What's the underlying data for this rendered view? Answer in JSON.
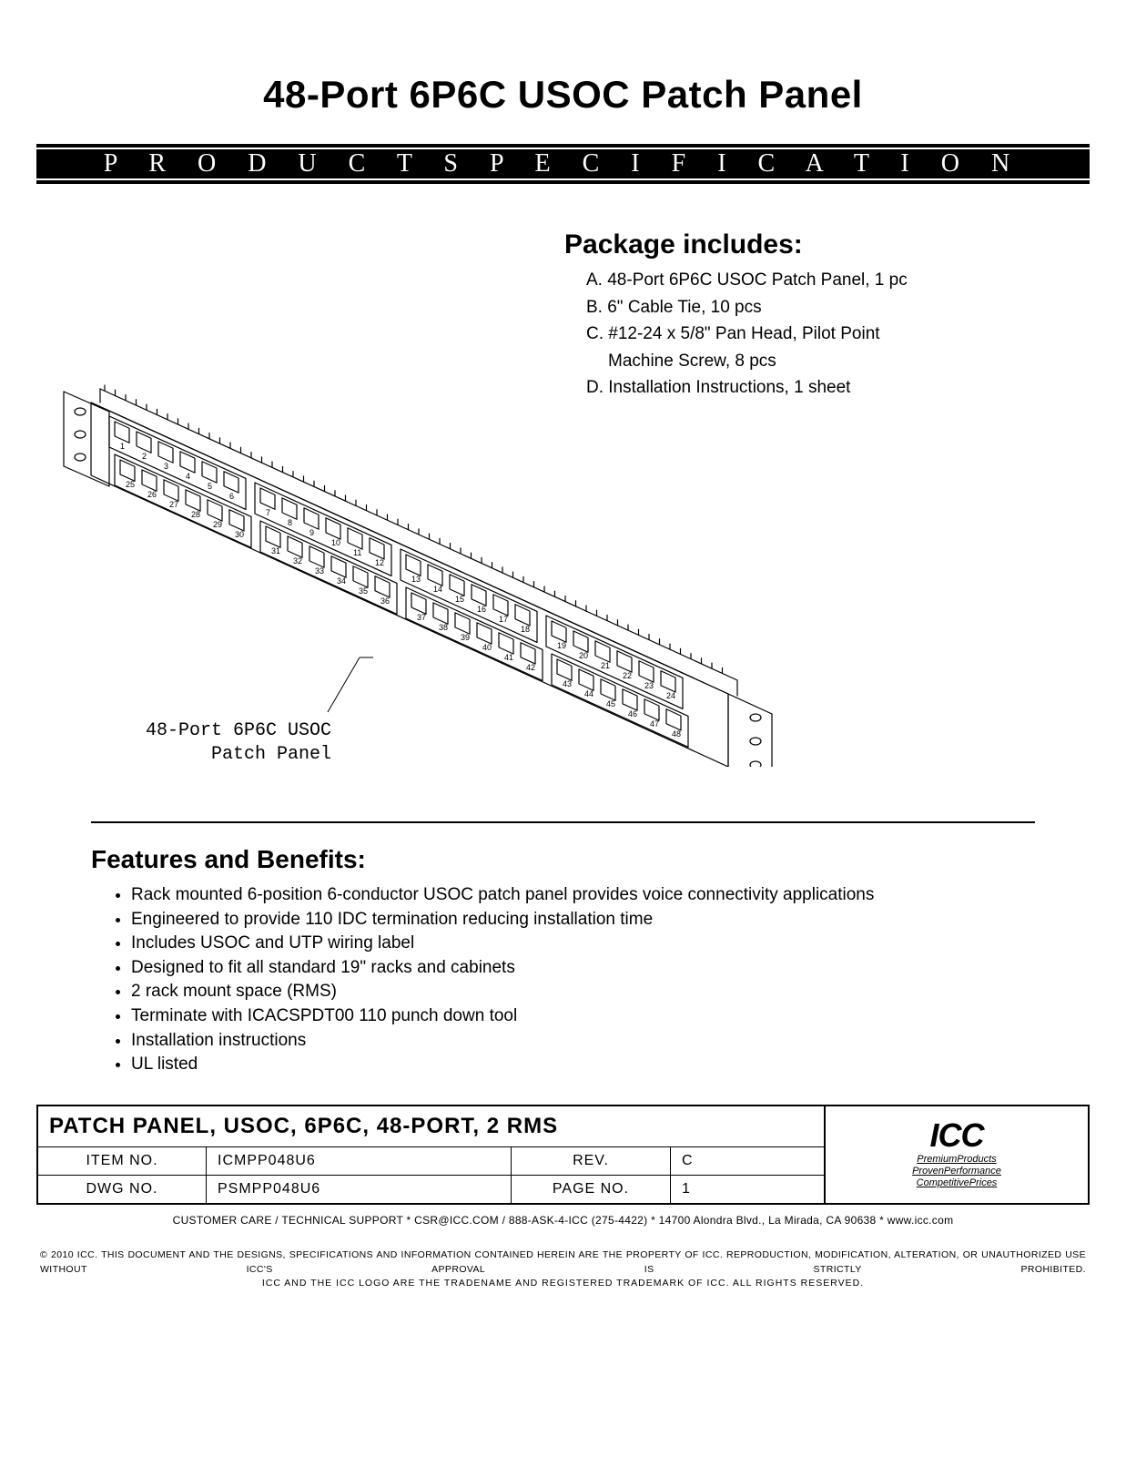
{
  "title": "48-Port 6P6C USOC Patch Panel",
  "spec_bar": "P R O D U C T   S P E C I F I C A T I O N",
  "package": {
    "heading": "Package includes:",
    "items": [
      "A. 48-Port 6P6C USOC Patch Panel, 1 pc",
      "B. 6\" Cable Tie, 10 pcs",
      "C. #12-24 x 5/8\" Pan Head, Pilot Point",
      "Machine Screw, 8 pcs",
      "D. Installation Instructions, 1 sheet"
    ]
  },
  "callout": {
    "line1": "48-Port 6P6C USOC",
    "line2": "Patch Panel"
  },
  "features": {
    "heading": "Features and Benefits:",
    "items": [
      "Rack mounted 6-position 6-conductor USOC patch panel provides voice connectivity applications",
      "Engineered to provide 110 IDC termination reducing installation time",
      "Includes USOC and UTP wiring label",
      "Designed to fit all standard 19\" racks and cabinets",
      "2 rack mount space (RMS)",
      "Terminate with ICACSPDT00 110 punch down tool",
      "Installation instructions",
      "UL listed"
    ]
  },
  "titleblock": {
    "heading": "PATCH PANEL, USOC, 6P6C, 48-PORT, 2 RMS",
    "rows": [
      {
        "c1": "ITEM  NO.",
        "c2": "ICMPP048U6",
        "c3": "REV.",
        "c4": "C"
      },
      {
        "c1": "DWG  NO.",
        "c2": "PSMPP048U6",
        "c3": "PAGE  NO.",
        "c4": "1"
      }
    ],
    "logo": "ICC",
    "tag_premium": "PremiumProducts",
    "tag_proven": "ProvenPerformance",
    "tag_prices": "CompetitivePrices"
  },
  "footer_support": "CUSTOMER CARE / TECHNICAL SUPPORT * CSR@ICC.COM / 888-ASK-4-ICC (275-4422) * 14700 Alondra Blvd., La Mirada, CA  90638 * www.icc.com",
  "footer_legal_1": "© 2010 ICC. THIS DOCUMENT AND THE DESIGNS, SPECIFICATIONS AND INFORMATION CONTAINED HEREIN ARE THE PROPERTY OF ICC. REPRODUCTION, MODIFICATION, ALTERATION, OR UNAUTHORIZED USE WITHOUT ICC'S APPROVAL IS STRICTLY PROHIBITED.",
  "footer_legal_2": "ICC AND THE ICC LOGO ARE THE TRADENAME AND REGISTERED TRADEMARK OF ICC.   ALL RIGHTS RESERVED.",
  "schematic": {
    "type": "isometric-line-drawing",
    "description": "48-port 6P6C USOC patch panel, 2 RMS, isometric view",
    "stroke_color": "#000000",
    "stroke_width": 1,
    "background": "#ffffff",
    "rows": 2,
    "groups_per_row": 4,
    "ports_per_group": 6,
    "port_labels": [
      1,
      2,
      3,
      4,
      5,
      6,
      7,
      8,
      9,
      10,
      11,
      12,
      13,
      14,
      15,
      16,
      17,
      18,
      19,
      20,
      21,
      22,
      23,
      24,
      25,
      26,
      27,
      28,
      29,
      30,
      31,
      32,
      33,
      34,
      35,
      36,
      37,
      38,
      39,
      40,
      41,
      42,
      43,
      44,
      45,
      46,
      47,
      48
    ],
    "mount_holes_per_ear": 3,
    "iso_tilt_deg": 28
  },
  "colors": {
    "text": "#000000",
    "background": "#ffffff",
    "bar_bg": "#000000",
    "bar_text": "#ffffff"
  }
}
